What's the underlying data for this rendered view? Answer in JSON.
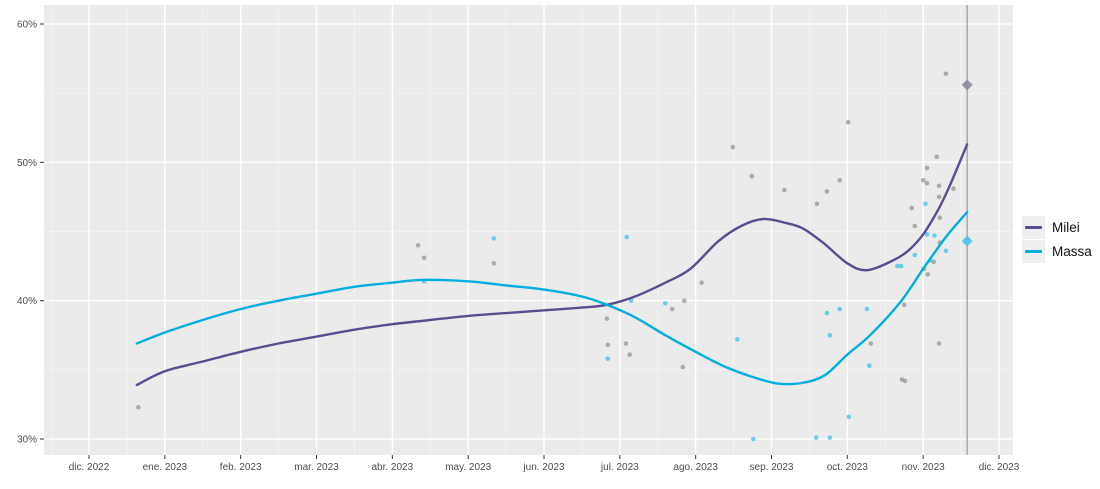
{
  "figure": {
    "background": "#FFFFFF",
    "panel_bg": "#EBEBEB",
    "grid_major_color": "#FFFFFF",
    "grid_minor_color": "#F5F5F5",
    "tick_color": "#333333",
    "tick_label_color": "#4D4D4D"
  },
  "chart_data": {
    "type": "scatter",
    "subtype": "poll-points-with-smoothed-trend-lines",
    "legend_position": "right",
    "grid": "on",
    "x_axis": {
      "tick_labels": [
        "dic. 2022",
        "ene. 2023",
        "feb. 2023",
        "mar. 2023",
        "abr. 2023",
        "may. 2023",
        "jun. 2023",
        "jul. 2023",
        "ago. 2023",
        "sep. 2023",
        "oct. 2023",
        "nov. 2023",
        "dic. 2023"
      ],
      "tick_months": [
        0,
        1,
        2,
        3,
        4,
        5,
        6,
        7,
        8,
        9,
        10,
        11,
        12
      ],
      "xlim_months": [
        -0.59,
        12.19
      ]
    },
    "y_axis": {
      "tick_labels": [
        "30%",
        "40%",
        "50%",
        "60%"
      ],
      "tick_values": [
        30,
        40,
        50,
        60
      ],
      "minor_values": [
        35,
        45,
        55
      ],
      "unit": "%",
      "ylim": [
        28.8,
        61.4
      ]
    },
    "event_line": {
      "x_month": 11.58,
      "color": "#9E9E9E"
    },
    "series": [
      {
        "name": "Milei",
        "line_color": "#5D4B90",
        "point_color": "#7F7F7F",
        "point_opacity": 0.6,
        "smooth_line": [
          [
            0.63,
            33.9
          ],
          [
            1.0,
            34.9
          ],
          [
            1.5,
            35.6
          ],
          [
            2.0,
            36.3
          ],
          [
            2.5,
            36.9
          ],
          [
            3.0,
            37.4
          ],
          [
            3.5,
            37.9
          ],
          [
            4.0,
            38.3
          ],
          [
            4.5,
            38.6
          ],
          [
            5.0,
            38.9
          ],
          [
            5.5,
            39.1
          ],
          [
            6.0,
            39.3
          ],
          [
            6.5,
            39.5
          ],
          [
            6.83,
            39.7
          ],
          [
            7.2,
            40.3
          ],
          [
            7.6,
            41.3
          ],
          [
            7.93,
            42.3
          ],
          [
            8.3,
            44.3
          ],
          [
            8.6,
            45.4
          ],
          [
            8.89,
            45.9
          ],
          [
            9.2,
            45.6
          ],
          [
            9.42,
            45.2
          ],
          [
            9.7,
            44.1
          ],
          [
            10.0,
            42.7
          ],
          [
            10.26,
            42.2
          ],
          [
            10.6,
            42.9
          ],
          [
            10.8,
            43.6
          ],
          [
            11.0,
            44.8
          ],
          [
            11.2,
            46.6
          ],
          [
            11.35,
            48.3
          ],
          [
            11.58,
            51.3
          ]
        ],
        "points": [
          [
            0.65,
            32.3
          ],
          [
            4.34,
            44.0
          ],
          [
            4.42,
            43.1
          ],
          [
            5.34,
            42.7
          ],
          [
            6.83,
            38.7
          ],
          [
            6.84,
            36.8
          ],
          [
            7.08,
            36.9
          ],
          [
            7.13,
            36.1
          ],
          [
            7.69,
            39.4
          ],
          [
            7.83,
            35.2
          ],
          [
            7.85,
            40.0
          ],
          [
            8.08,
            41.3
          ],
          [
            8.49,
            51.1
          ],
          [
            8.74,
            49.0
          ],
          [
            9.17,
            48.0
          ],
          [
            9.6,
            47.0
          ],
          [
            9.73,
            47.9
          ],
          [
            9.9,
            48.7
          ],
          [
            10.01,
            52.9
          ],
          [
            10.31,
            36.9
          ],
          [
            10.72,
            34.3
          ],
          [
            10.76,
            34.2
          ],
          [
            10.75,
            39.7
          ],
          [
            10.85,
            46.7
          ],
          [
            10.89,
            45.4
          ],
          [
            11.0,
            48.7
          ],
          [
            11.01,
            42.3
          ],
          [
            11.05,
            49.6
          ],
          [
            11.05,
            48.5
          ],
          [
            11.06,
            41.9
          ],
          [
            11.14,
            42.8
          ],
          [
            11.18,
            50.4
          ],
          [
            11.21,
            48.3
          ],
          [
            11.21,
            47.5
          ],
          [
            11.21,
            36.9
          ],
          [
            11.22,
            46.0
          ],
          [
            11.22,
            44.2
          ],
          [
            11.3,
            56.4
          ],
          [
            11.4,
            48.1
          ]
        ],
        "result_marker": {
          "x_month": 11.58,
          "value": 55.6,
          "shape": "diamond",
          "color": "#8E87A3"
        }
      },
      {
        "name": "Massa",
        "line_color": "#00AEE0",
        "point_color": "#3EC1E8",
        "point_opacity": 0.75,
        "smooth_line": [
          [
            0.63,
            36.9
          ],
          [
            1.0,
            37.7
          ],
          [
            1.5,
            38.6
          ],
          [
            2.0,
            39.4
          ],
          [
            2.5,
            40.0
          ],
          [
            3.0,
            40.5
          ],
          [
            3.5,
            41.0
          ],
          [
            4.0,
            41.3
          ],
          [
            4.4,
            41.5
          ],
          [
            5.0,
            41.4
          ],
          [
            5.5,
            41.1
          ],
          [
            6.0,
            40.8
          ],
          [
            6.5,
            40.3
          ],
          [
            6.83,
            39.7
          ],
          [
            7.2,
            38.8
          ],
          [
            7.6,
            37.5
          ],
          [
            8.0,
            36.3
          ],
          [
            8.4,
            35.2
          ],
          [
            8.8,
            34.4
          ],
          [
            9.1,
            34.0
          ],
          [
            9.4,
            34.05
          ],
          [
            9.7,
            34.6
          ],
          [
            10.0,
            36.1
          ],
          [
            10.3,
            37.5
          ],
          [
            10.7,
            39.9
          ],
          [
            11.0,
            42.3
          ],
          [
            11.3,
            44.6
          ],
          [
            11.58,
            46.4
          ]
        ],
        "points": [
          [
            4.42,
            41.4
          ],
          [
            5.34,
            44.5
          ],
          [
            6.84,
            35.8
          ],
          [
            7.09,
            44.6
          ],
          [
            7.15,
            40.0
          ],
          [
            7.6,
            39.8
          ],
          [
            8.55,
            37.2
          ],
          [
            8.76,
            30.0
          ],
          [
            9.59,
            30.1
          ],
          [
            9.73,
            39.1
          ],
          [
            9.77,
            37.5
          ],
          [
            9.77,
            30.1
          ],
          [
            9.9,
            39.4
          ],
          [
            10.02,
            31.6
          ],
          [
            10.26,
            39.4
          ],
          [
            10.29,
            35.3
          ],
          [
            10.66,
            42.5
          ],
          [
            10.71,
            42.5
          ],
          [
            10.89,
            43.3
          ],
          [
            11.03,
            47.0
          ],
          [
            11.05,
            44.8
          ],
          [
            11.1,
            42.9
          ],
          [
            11.15,
            44.7
          ],
          [
            11.3,
            43.6
          ]
        ],
        "result_marker": {
          "x_month": 11.58,
          "value": 44.3,
          "shape": "diamond",
          "color": "#49C3EA"
        }
      }
    ]
  }
}
